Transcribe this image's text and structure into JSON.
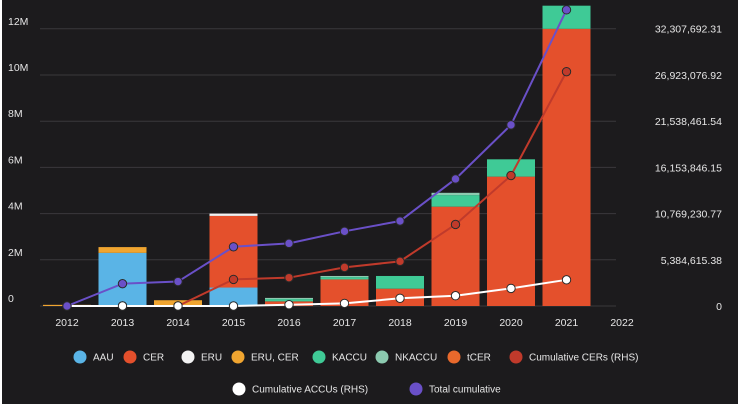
{
  "colors": {
    "background": "#1c1b1d",
    "grid": "#3a393c",
    "AAU": "#5ab4e6",
    "CER": "#e4502c",
    "ERU": "#f2f2f2",
    "ERU, CER": "#f0a530",
    "KACCU": "#3fca96",
    "NKACCU": "#8ccab0",
    "tCER": "#e8692c",
    "Cumulative CERs (RHS)": "#c03a2b",
    "Cumulative ACCUs (RHS)": "#ffffff",
    "Total cumulative": "#6a50c8"
  },
  "chart_data": {
    "type": "bar",
    "stacked": true,
    "grid": true,
    "legend_position": "bottom",
    "categories": [
      "2012",
      "2013",
      "2014",
      "2015",
      "2016",
      "2017",
      "2018",
      "2019",
      "2020",
      "2021",
      "2022"
    ],
    "y_left": {
      "ylim": [
        0,
        12900000
      ],
      "ticks": [
        0,
        2000000,
        4000000,
        6000000,
        8000000,
        10000000,
        12000000
      ],
      "tick_labels": [
        "0",
        "2M",
        "4M",
        "6M",
        "8M",
        "10M",
        "12M"
      ]
    },
    "y_right": {
      "ylim": [
        0,
        34715000
      ],
      "ticks": [
        0,
        5384615.38,
        10769230.77,
        16153846.15,
        21538461.54,
        26923076.92,
        32307692.31
      ],
      "tick_labels": [
        "0",
        "5,384,615.38",
        "10,769,230.77",
        "16,153,846.15",
        "21,538,461.54",
        "26,923,076.92",
        "32,307,692.31"
      ]
    },
    "bar_series": [
      {
        "name": "AAU",
        "values": [
          0,
          2300000,
          0,
          800000,
          0,
          0,
          0,
          0,
          0,
          0,
          0
        ]
      },
      {
        "name": "CER",
        "values": [
          0,
          0,
          0,
          3100000,
          200000,
          1150000,
          750000,
          4300000,
          5600000,
          12000000,
          0
        ]
      },
      {
        "name": "ERU",
        "values": [
          0,
          0,
          0,
          100000,
          0,
          0,
          0,
          0,
          0,
          0,
          0
        ]
      },
      {
        "name": "ERU, CER",
        "values": [
          50000,
          250000,
          250000,
          0,
          0,
          0,
          0,
          0,
          0,
          0,
          0
        ]
      },
      {
        "name": "KACCU",
        "values": [
          0,
          0,
          0,
          0,
          100000,
          100000,
          550000,
          500000,
          750000,
          1000000,
          0
        ]
      },
      {
        "name": "NKACCU",
        "values": [
          0,
          0,
          0,
          0,
          50000,
          50000,
          0,
          100000,
          0,
          0,
          0
        ]
      },
      {
        "name": "tCER",
        "values": [
          0,
          0,
          0,
          0,
          0,
          0,
          0,
          0,
          0,
          0,
          0
        ]
      }
    ],
    "line_series": [
      {
        "name": "Cumulative CERs (RHS)",
        "axis": "right",
        "values": [
          0,
          0,
          0,
          3100000,
          3300000,
          4500000,
          5200000,
          9500000,
          15200000,
          27300000,
          null
        ]
      },
      {
        "name": "Cumulative ACCUs (RHS)",
        "axis": "right",
        "values": [
          0,
          0,
          0,
          0,
          150000,
          300000,
          900000,
          1200000,
          2050000,
          3050000,
          null
        ]
      },
      {
        "name": "Total cumulative",
        "axis": "right",
        "values": [
          0,
          2600000,
          2850000,
          6900000,
          7300000,
          8700000,
          9900000,
          14800000,
          21100000,
          34500000,
          null
        ]
      }
    ],
    "legend": [
      {
        "name": "AAU",
        "color": "#5ab4e6"
      },
      {
        "name": "CER",
        "color": "#e4502c"
      },
      {
        "name": "ERU",
        "color": "#f2f2f2"
      },
      {
        "name": "ERU, CER",
        "color": "#f0a530"
      },
      {
        "name": "KACCU",
        "color": "#3fca96"
      },
      {
        "name": "NKACCU",
        "color": "#8ccab0"
      },
      {
        "name": "tCER",
        "color": "#e8692c"
      },
      {
        "name": "Cumulative CERs (RHS)",
        "color": "#c03a2b"
      },
      {
        "name": "Cumulative ACCUs (RHS)",
        "color": "#ffffff"
      },
      {
        "name": "Total cumulative",
        "color": "#6a50c8"
      }
    ]
  }
}
